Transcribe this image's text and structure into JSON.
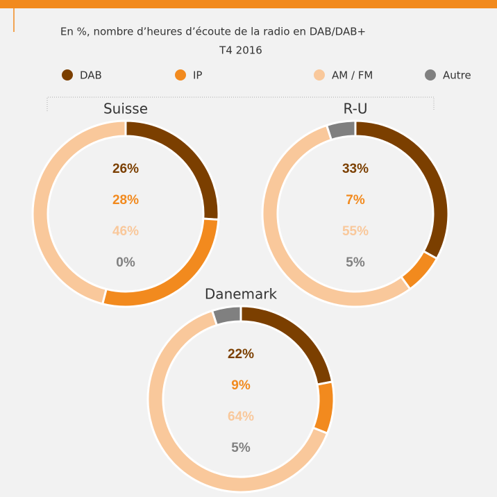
{
  "header": {
    "title": "En %, nombre d’heures d’écoute de la radio en DAB/DAB+",
    "subtitle": "T4 2016"
  },
  "chart_data": [
    {
      "type": "donut",
      "title": "Suisse",
      "categories": [
        "DAB",
        "IP",
        "AM / FM",
        "Autre"
      ],
      "values": [
        26,
        28,
        46,
        0
      ],
      "value_labels": [
        "26%",
        "28%",
        "46%",
        "0%"
      ],
      "colors": [
        "#7b3f00",
        "#f28a1e",
        "#f9c89b",
        "#808080"
      ]
    },
    {
      "type": "donut",
      "title": "R-U",
      "categories": [
        "DAB",
        "IP",
        "AM / FM",
        "Autre"
      ],
      "values": [
        33,
        7,
        55,
        5
      ],
      "value_labels": [
        "33%",
        "7%",
        "55%",
        "5%"
      ],
      "colors": [
        "#7b3f00",
        "#f28a1e",
        "#f9c89b",
        "#808080"
      ]
    },
    {
      "type": "donut",
      "title": "Danemark",
      "categories": [
        "DAB",
        "IP",
        "AM / FM",
        "Autre"
      ],
      "values": [
        22,
        9,
        64,
        5
      ],
      "value_labels": [
        "22%",
        "9%",
        "64%",
        "5%"
      ],
      "colors": [
        "#7b3f00",
        "#f28a1e",
        "#f9c89b",
        "#808080"
      ]
    }
  ]
}
